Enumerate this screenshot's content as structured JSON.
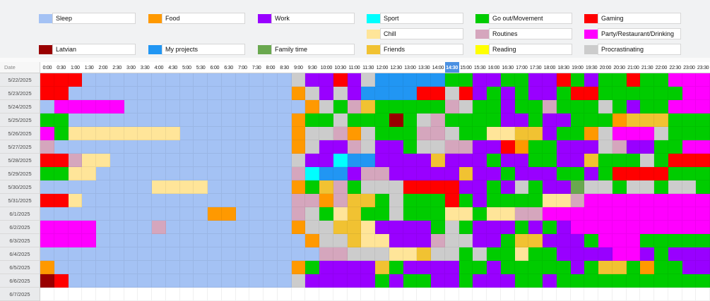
{
  "header": {
    "date_label": "Date",
    "selected_time": "14:30",
    "highlight_color": "#4a90e2",
    "times": [
      "0:00",
      "0:30",
      "1:00",
      "1:30",
      "2:00",
      "2:30",
      "3:00",
      "3:30",
      "4:00",
      "4:30",
      "5:00",
      "5:30",
      "6:00",
      "6:30",
      "7:00",
      "7:30",
      "8:00",
      "8:30",
      "9:00",
      "9:30",
      "10:00",
      "10:30",
      "11:00",
      "11:30",
      "12:00",
      "12:30",
      "13:00",
      "13:30",
      "14:00",
      "14:30",
      "15:00",
      "15:30",
      "16:00",
      "16:30",
      "17:00",
      "17:30",
      "18:00",
      "18:30",
      "19:00",
      "19:30",
      "20:00",
      "20:30",
      "21:00",
      "21:30",
      "22:00",
      "22:30",
      "23:00",
      "23:30"
    ]
  },
  "colors": {
    "S": "#a4c2f4",
    "F": "#ff9900",
    "W": "#9900ff",
    "P": "#00ffff",
    "G": "#00cc00",
    "R": "#ff0000",
    "C": "#ffe599",
    "T": "#d5a6bd",
    "D": "#ff00ff",
    "L": "#990000",
    "J": "#2196f3",
    "Y": "#6aa84f",
    "N": "#f1c232",
    "E": "#ffff00",
    "X": "#cccccc",
    ".": "#ffffff"
  },
  "legend": {
    "rows": [
      [
        {
          "label": "Sleep",
          "code": "S"
        },
        {
          "label": "Food",
          "code": "F"
        },
        {
          "label": "Work",
          "code": "W"
        },
        {
          "label": "Sport",
          "code": "P"
        },
        {
          "label": "Go out/Movement",
          "code": "G"
        },
        {
          "label": "Gaming",
          "code": "R"
        }
      ],
      [
        null,
        null,
        null,
        {
          "label": "Chill",
          "code": "C"
        },
        {
          "label": "Routines",
          "code": "T"
        },
        {
          "label": "Party/Restaurant/Drinking",
          "code": "D"
        }
      ],
      [
        {
          "label": "Latvian",
          "code": "L"
        },
        {
          "label": "My projects",
          "code": "J"
        },
        {
          "label": "Family time",
          "code": "Y"
        },
        {
          "label": "Friends",
          "code": "N"
        },
        {
          "label": "Reading",
          "code": "E"
        },
        {
          "label": "Procrastinating",
          "code": "X"
        }
      ]
    ]
  },
  "rows": [
    {
      "date": "5/22/2025",
      "cells": "RRRSSSSSSSSSSSSSSSXWWRWXJJJJJGGWWGGWWRGWGGRGGDDD"
    },
    {
      "date": "5/23/2025",
      "cells": "RRSSSSSSSSSSSSSSSSFXWXWJJJJRRXRWGWGWWGRRGGGGGGDD"
    },
    {
      "date": "5/24/2025",
      "cells": "SDDDDDSSSSSSSSSSSSSFXGTNGGGGGTXGGWGGTGGGXGWGGDDD"
    },
    {
      "date": "5/25/2025",
      "cells": "GGSSSSSSSSSSSSSSSSFGGXGGGLGXTGGGGWWGWWGGGFNNNGGG"
    },
    {
      "date": "5/26/2025",
      "cells": "DGCCCCCCCCSSSSSSSSFXXTFXGGGTTXGGCCNNWGGFXDDDXGGG"
    },
    {
      "date": "5/27/2025",
      "cells": "TSSSSSSSSSSSSSSSSSFXWWTXWWGXXTTWWRFGGWWWXTWWGGDD"
    },
    {
      "date": "5/28/2025",
      "cells": "RRTCCSSSSSSSSSSSSSXWWPJJWWWWNWWWGWWGGWWNGGGXGRRR"
    },
    {
      "date": "5/29/2025",
      "cells": "GGCCSSSSSSSSSSSSSSTPJJWTTWWWWWNWWGWWWGGWGRRRRGGG"
    },
    {
      "date": "5/30/2025",
      "cells": "SSSSSSSSCCCCSSSSSSFGNTGXXXRRRRWWGWXGWWYXXGXXGXXG"
    },
    {
      "date": "5/31/2025",
      "cells": "RRCSSSSSSSSSSSSSSSTTFTNNGXGGGRGWGGGGCCTDDDDDDDDD"
    },
    {
      "date": "6/1/2025",
      "cells": "SSSSSSSSSSSSFFSSSSTXGCNGGXGGGCCGCCTTDDDDDDDDDDDD"
    },
    {
      "date": "6/2/2025",
      "cells": "DDDDSSSSTSSSSSSSSSFXXNNCWWWWGXGWWWGWGWDDDDDDDDDD"
    },
    {
      "date": "6/3/2025",
      "cells": "DDDDSSSSSSSSSSSSSSSFXXNCCWWWTXXWWGNNWWWGDDDGGGGG"
    },
    {
      "date": "6/4/2025",
      "cells": "SSSSSSSSSSSSSSSSSSSSTTXXXCCNXXGXGGCGGWWWWDDWGWWW"
    },
    {
      "date": "6/5/2025",
      "cells": "FSSSSSSSSSSSSSSSSSFGWWWWNGWWWWGGWGGGGGWGNNGFGGWW"
    },
    {
      "date": "6/6/2025",
      "cells": "LRSSSSSSSSSSSSSSSSXWWWWWGWGGWWGWWWGGWGGGGGGGGGGG"
    },
    {
      "date": "6/7/2025",
      "cells": "................................................"
    }
  ]
}
